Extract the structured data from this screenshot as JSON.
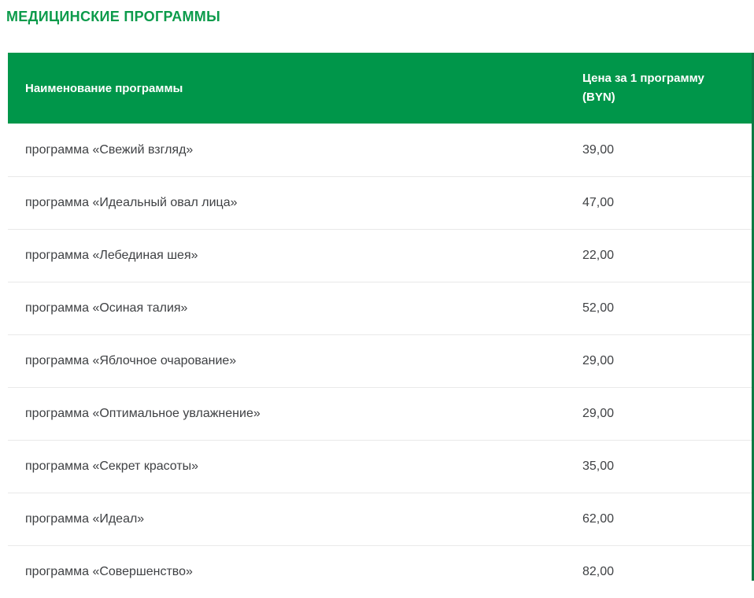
{
  "page_title": "МЕДИЦИНСКИЕ ПРОГРАММЫ",
  "table": {
    "header": {
      "name": "Наименование программы",
      "price": "Цена за 1 программу (BYN)"
    },
    "rows": [
      {
        "name": "программа «Свежий взгляд»",
        "price": "39,00"
      },
      {
        "name": "программа «Идеальный овал лица»",
        "price": "47,00"
      },
      {
        "name": "программа «Лебединая шея»",
        "price": "22,00"
      },
      {
        "name": "программа «Осиная талия»",
        "price": "52,00"
      },
      {
        "name": "программа «Яблочное очарование»",
        "price": "29,00"
      },
      {
        "name": "программа «Оптимальное увлажнение»",
        "price": "29,00"
      },
      {
        "name": "программа «Секрет красоты»",
        "price": "35,00"
      },
      {
        "name": "программа «Идеал»",
        "price": "62,00"
      },
      {
        "name": "программа «Совершенство»",
        "price": "82,00"
      }
    ]
  },
  "colors": {
    "title_green": "#0c9b4b",
    "header_green": "#00964a",
    "header_text": "#ffffff",
    "row_text": "#3f4144",
    "divider": "#e9e9e9",
    "table_edge_green": "#0b7a42"
  }
}
